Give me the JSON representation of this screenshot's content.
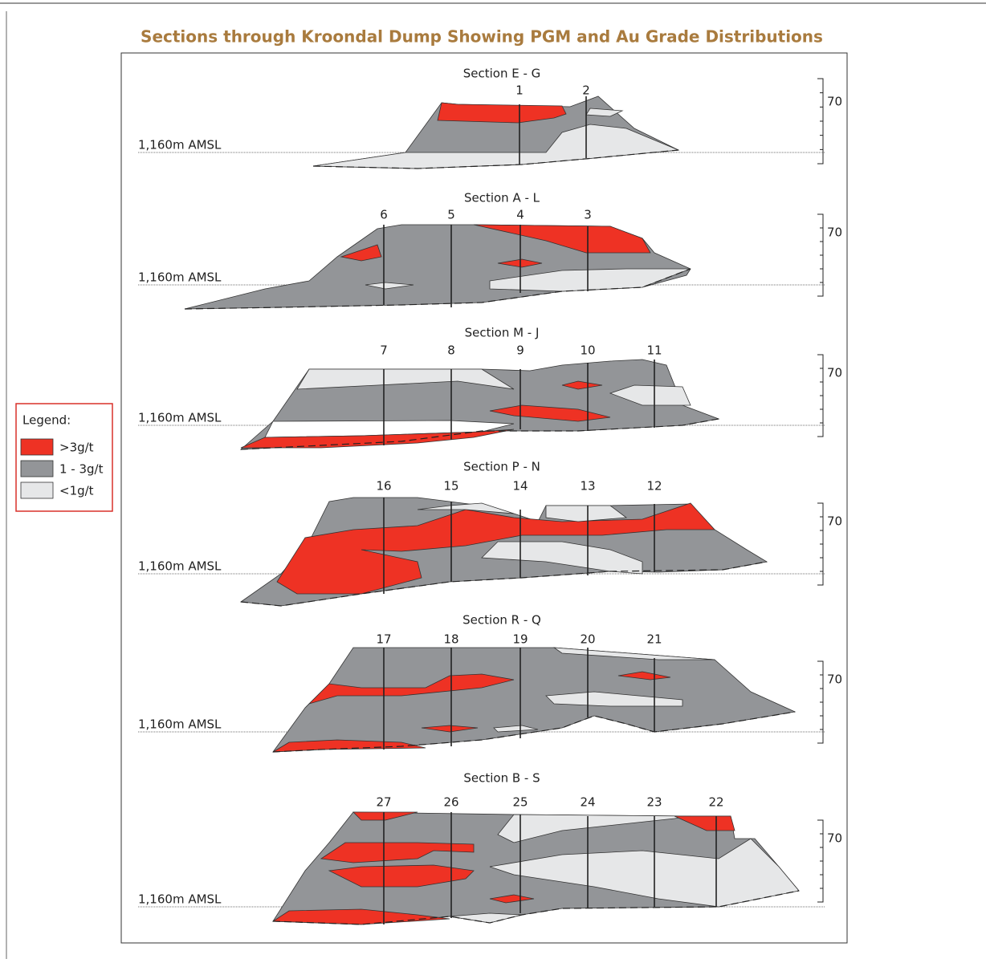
{
  "title": "Sections through Kroondal Dump Showing PGM and Au Grade Distributions",
  "legend": {
    "title": "Legend:",
    "items": [
      ">3g/t",
      "1 - 3g/t",
      "<1g/t"
    ]
  },
  "sections": [
    {
      "label": "Section E - G",
      "datum": "1,160m AMSL",
      "scale": "70",
      "holes": [
        "1",
        "2"
      ]
    },
    {
      "label": "Section A - L",
      "datum": "1,160m AMSL",
      "scale": "70",
      "holes": [
        "6",
        "5",
        "4",
        "3"
      ]
    },
    {
      "label": "Section M - J",
      "datum": "1,160m AMSL",
      "scale": "70",
      "holes": [
        "7",
        "8",
        "9",
        "10",
        "11"
      ]
    },
    {
      "label": "Section P - N",
      "datum": "1,160m AMSL",
      "scale": "70",
      "holes": [
        "16",
        "15",
        "14",
        "13",
        "12"
      ]
    },
    {
      "label": "Section R - Q",
      "datum": "1,160m AMSL",
      "scale": "70",
      "holes": [
        "17",
        "18",
        "19",
        "20",
        "21"
      ]
    },
    {
      "label": "Section B - S",
      "datum": "1,160m AMSL",
      "scale": "70",
      "holes": [
        "27",
        "26",
        "25",
        "24",
        "23",
        "22"
      ]
    }
  ]
}
